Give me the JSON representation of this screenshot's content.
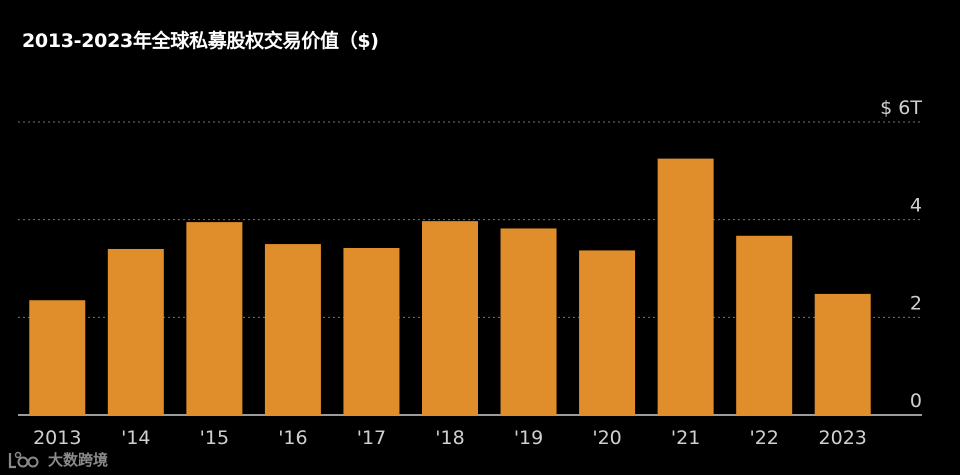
{
  "chart_data": {
    "type": "bar",
    "title": "2013-2023年全球私募股权交易价值（$)",
    "categories": [
      "2013",
      "'14",
      "'15",
      "'16",
      "'17",
      "'18",
      "'19",
      "'20",
      "'21",
      "'22",
      "2023"
    ],
    "values": [
      2.35,
      3.4,
      3.95,
      3.5,
      3.42,
      3.97,
      3.82,
      3.37,
      5.25,
      3.67,
      2.48
    ],
    "ylim": [
      0,
      6
    ],
    "y_ticks": [
      "0",
      "2",
      "4",
      "$ 6T"
    ],
    "xlabel": "",
    "ylabel": "",
    "grid": true,
    "bar_color": "#e08e2b",
    "background": "#000000"
  },
  "watermark": {
    "text": "大数跨境"
  }
}
